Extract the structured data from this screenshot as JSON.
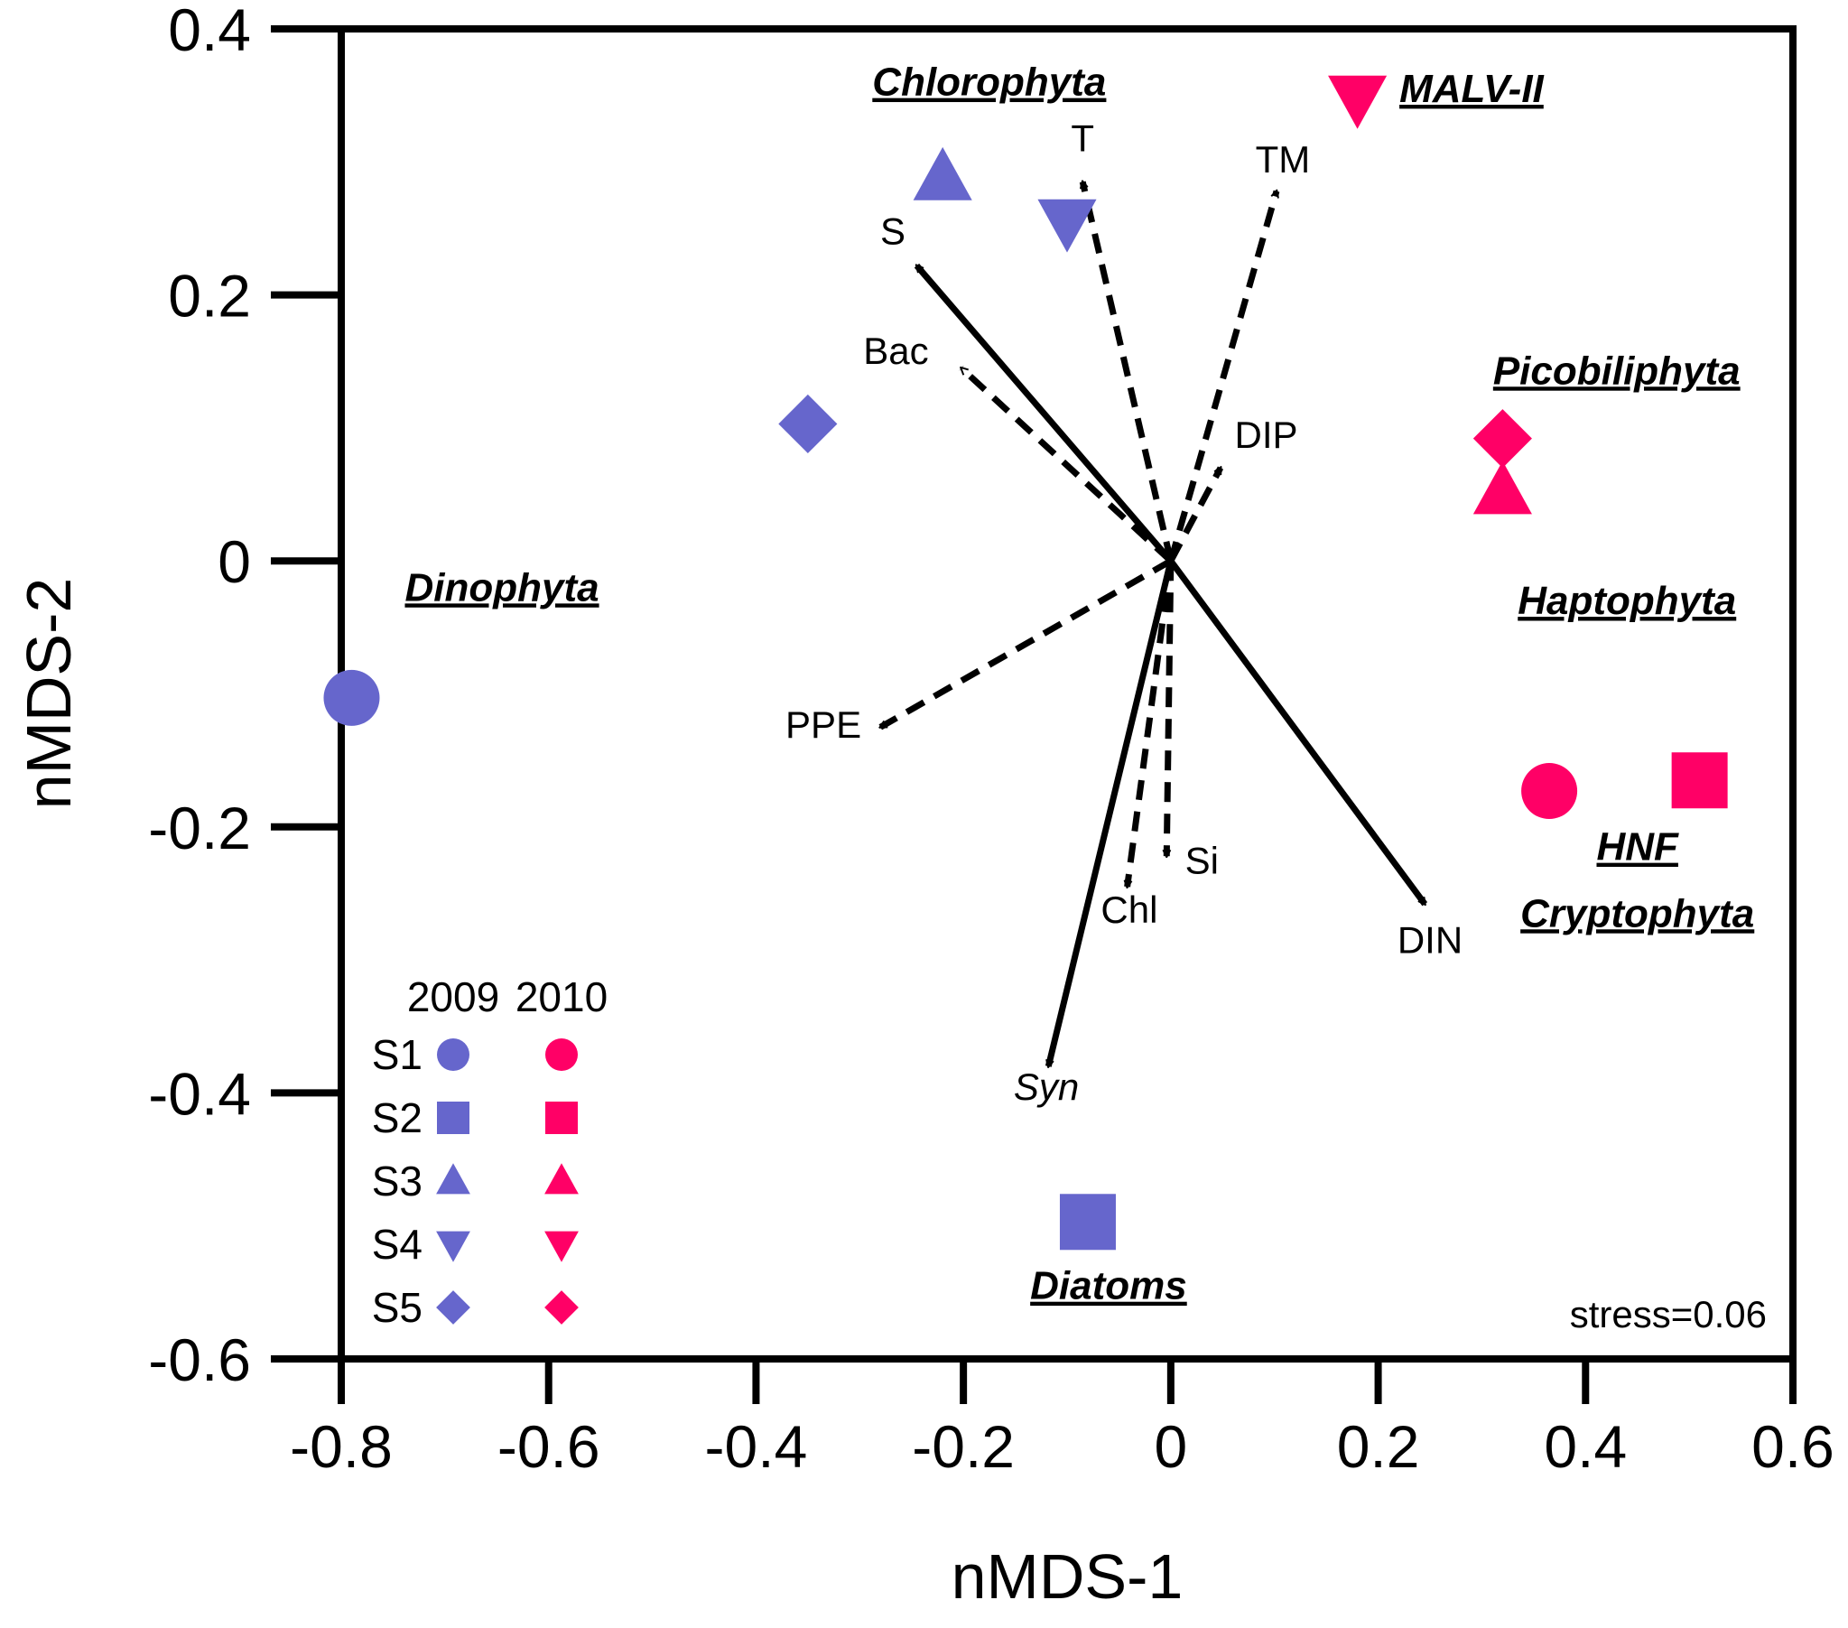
{
  "chart_data": {
    "type": "scatter",
    "title": "",
    "xlabel": "nMDS-1",
    "ylabel": "nMDS-2",
    "xlim": [
      -0.8,
      0.6
    ],
    "ylim": [
      -0.6,
      0.4
    ],
    "xticks": [
      -0.8,
      -0.6,
      -0.4,
      -0.2,
      0,
      0.2,
      0.4,
      0.6
    ],
    "xtick_labels": [
      "-0.8",
      "-0.6",
      "-0.4",
      "-0.2",
      "0",
      "0.2",
      "0.4",
      "0.6"
    ],
    "yticks": [
      -0.6,
      -0.4,
      -0.2,
      0,
      0.2,
      0.4
    ],
    "ytick_labels": [
      "-0.6",
      "-0.4",
      "-0.2",
      "0",
      "0.2",
      "0.4"
    ],
    "grid": false,
    "colors": {
      "2009": "#6666CC",
      "2010": "#FF0066",
      "arrow": "#000000"
    },
    "series": [
      {
        "name": "2009",
        "points": [
          {
            "station": "S1",
            "shape": "circle",
            "x": -0.79,
            "y": -0.103
          },
          {
            "station": "S2",
            "shape": "square",
            "x": -0.08,
            "y": -0.497
          },
          {
            "station": "S3",
            "shape": "triangle-up",
            "x": -0.22,
            "y": 0.288
          },
          {
            "station": "S4",
            "shape": "triangle-down",
            "x": -0.1,
            "y": 0.255
          },
          {
            "station": "S5",
            "shape": "diamond",
            "x": -0.35,
            "y": 0.103
          }
        ]
      },
      {
        "name": "2010",
        "points": [
          {
            "station": "S1",
            "shape": "circle",
            "x": 0.365,
            "y": -0.173
          },
          {
            "station": "S2",
            "shape": "square",
            "x": 0.51,
            "y": -0.165
          },
          {
            "station": "S3",
            "shape": "triangle-up",
            "x": 0.32,
            "y": 0.052
          },
          {
            "station": "S4",
            "shape": "triangle-down",
            "x": 0.18,
            "y": 0.348
          },
          {
            "station": "S5",
            "shape": "diamond",
            "x": 0.32,
            "y": 0.092
          }
        ]
      }
    ],
    "vectors": [
      {
        "label": "S",
        "style": "solid",
        "italic": false,
        "x": -0.245,
        "y": 0.222,
        "label_x": -0.268,
        "label_y": 0.238
      },
      {
        "label": "DIN",
        "style": "solid",
        "italic": false,
        "x": 0.245,
        "y": -0.258,
        "label_x": 0.25,
        "label_y": -0.295
      },
      {
        "label": "Syn",
        "style": "solid",
        "italic": true,
        "x": -0.118,
        "y": -0.38,
        "label_x": -0.12,
        "label_y": -0.405
      },
      {
        "label": "T",
        "style": "dashed",
        "italic": false,
        "x": -0.085,
        "y": 0.285,
        "label_x": -0.085,
        "label_y": 0.308
      },
      {
        "label": "TM",
        "style": "dashed",
        "italic": false,
        "x": 0.102,
        "y": 0.278,
        "label_x": 0.108,
        "label_y": 0.292
      },
      {
        "label": "Bac",
        "style": "dashed",
        "italic": false,
        "x": -0.202,
        "y": 0.145,
        "label_x": -0.265,
        "label_y": 0.148
      },
      {
        "label": "DIP",
        "style": "dashed",
        "italic": false,
        "x": 0.048,
        "y": 0.07,
        "label_x": 0.092,
        "label_y": 0.085
      },
      {
        "label": "PPE",
        "style": "dashed",
        "italic": false,
        "x": -0.28,
        "y": -0.125,
        "label_x": -0.335,
        "label_y": -0.133
      },
      {
        "label": "Chl",
        "style": "dashed",
        "italic": false,
        "x": -0.042,
        "y": -0.245,
        "label_x": -0.04,
        "label_y": -0.272
      },
      {
        "label": "Si",
        "style": "dashed",
        "italic": false,
        "x": -0.004,
        "y": -0.222,
        "label_x": 0.03,
        "label_y": -0.235
      }
    ],
    "taxon_labels": [
      {
        "text": "Chlorophyta",
        "x": -0.175,
        "y": 0.35
      },
      {
        "text": "MALV-II",
        "x": 0.29,
        "y": 0.345
      },
      {
        "text": "Picobiliphyta",
        "x": 0.43,
        "y": 0.133
      },
      {
        "text": "Dinophyta",
        "x": -0.645,
        "y": -0.03
      },
      {
        "text": "Haptophyta",
        "x": 0.44,
        "y": -0.04
      },
      {
        "text": "HNF",
        "x": 0.45,
        "y": -0.225
      },
      {
        "text": "Cryptophyta",
        "x": 0.45,
        "y": -0.275
      },
      {
        "text": "Diatoms",
        "x": -0.06,
        "y": -0.555
      }
    ],
    "legend": {
      "placement": "bottom-left",
      "years": [
        "2009",
        "2010"
      ],
      "stations": [
        {
          "label": "S1",
          "shape": "circle"
        },
        {
          "label": "S2",
          "shape": "square"
        },
        {
          "label": "S3",
          "shape": "triangle-up"
        },
        {
          "label": "S4",
          "shape": "triangle-down"
        },
        {
          "label": "S5",
          "shape": "diamond"
        }
      ]
    },
    "stress_label": "stress=0.06"
  }
}
